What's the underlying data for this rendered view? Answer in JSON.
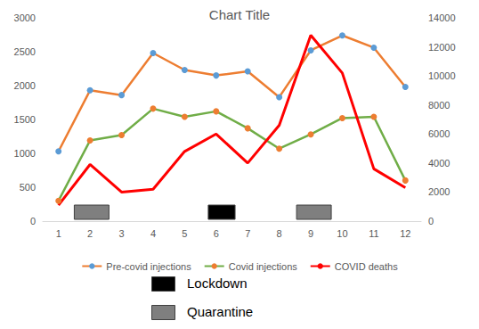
{
  "chart_data": {
    "type": "line",
    "title": "Chart Title",
    "x": [
      1,
      2,
      3,
      4,
      5,
      6,
      7,
      8,
      9,
      10,
      11,
      12
    ],
    "xlim": [
      0.5,
      12.5
    ],
    "xticks": [
      1,
      2,
      3,
      4,
      5,
      6,
      7,
      8,
      9,
      10,
      11,
      12
    ],
    "ylim": [
      0,
      3000
    ],
    "yticks": [
      0,
      500,
      1000,
      1500,
      2000,
      2500,
      3000
    ],
    "y2lim": [
      0,
      14000
    ],
    "y2ticks": [
      0,
      2000,
      4000,
      6000,
      8000,
      10000,
      12000,
      14000
    ],
    "grid": false,
    "legend": "bottom",
    "series": [
      {
        "name": "Pre-covid injections",
        "color": "#ed7d31",
        "marker": "circle",
        "values": [
          1030,
          1930,
          1860,
          2480,
          2230,
          2150,
          2210,
          1830,
          2520,
          2740,
          2560,
          1980
        ]
      },
      {
        "name": "Covid injections",
        "color": "#70ad47",
        "marker": "circle",
        "values": [
          300,
          1190,
          1270,
          1660,
          1540,
          1620,
          1370,
          1070,
          1280,
          1520,
          1540,
          600
        ]
      },
      {
        "name": "COVID deaths",
        "color": "#ff0000",
        "marker": "none",
        "axis": "y2",
        "values": [
          1100,
          3900,
          2000,
          2200,
          4800,
          6000,
          4000,
          6600,
          12800,
          10200,
          3600,
          2300
        ]
      }
    ],
    "periods": [
      {
        "name": "Lockdown",
        "color": "#000000",
        "ranges": [
          [
            5.75,
            6.6
          ]
        ]
      },
      {
        "name": "Quarantine",
        "color": "#7f7f7f",
        "ranges": [
          [
            1.5,
            2.6
          ],
          [
            8.55,
            9.65
          ]
        ]
      }
    ]
  }
}
